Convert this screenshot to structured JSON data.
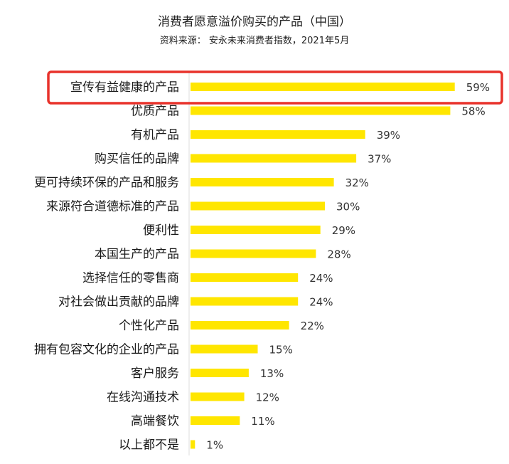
{
  "chart_data": {
    "type": "bar",
    "orientation": "horizontal",
    "title": "消费者愿意溢价购买的产品（中国）",
    "subtitle": "资料来源： 安永未来消费者指数，2021年5月",
    "categories": [
      "宣传有益健康的产品",
      "优质产品",
      "有机产品",
      "购买信任的品牌",
      "更可持续环保的产品和服务",
      "来源符合道德标准的产品",
      "便利性",
      "本国生产的产品",
      "选择信任的零售商",
      "对社会做出贡献的品牌",
      "个性化产品",
      "拥有包容文化的企业的产品",
      "客户服务",
      "在线沟通技术",
      "高端餐饮",
      "以上都不是"
    ],
    "values": [
      59,
      58,
      39,
      37,
      32,
      30,
      29,
      28,
      24,
      24,
      22,
      15,
      13,
      12,
      11,
      1
    ],
    "value_labels": [
      "59%",
      "58%",
      "39%",
      "37%",
      "32%",
      "30%",
      "29%",
      "28%",
      "24%",
      "24%",
      "22%",
      "15%",
      "13%",
      "12%",
      "11%",
      "1%"
    ],
    "unit": "%",
    "highlighted_category": "宣传有益健康的产品",
    "xlim": [
      0,
      60
    ],
    "grid": false,
    "legend": "none",
    "colors": {
      "bar": "#FFE600",
      "highlight_border": "#E8322B",
      "axis": "#dddddd",
      "text": "#1a1a1a"
    }
  }
}
